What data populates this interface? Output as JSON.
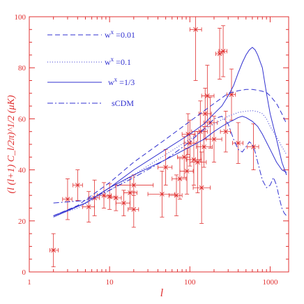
{
  "chart_data": {
    "type": "line",
    "x_scale": "log",
    "xlim": [
      1,
      1700
    ],
    "ylim": [
      0,
      100
    ],
    "xlabel": "l",
    "ylabel": "(l (l+1) C_l/2π)^1/2 (μK)",
    "x_ticks": [
      {
        "value": 1,
        "label": "1"
      },
      {
        "value": 10,
        "label": "10"
      },
      {
        "value": 100,
        "label": "100"
      },
      {
        "value": 1000,
        "label": "1000"
      }
    ],
    "y_ticks": [
      {
        "value": 0,
        "label": "0"
      },
      {
        "value": 20,
        "label": "20"
      },
      {
        "value": 40,
        "label": "40"
      },
      {
        "value": 60,
        "label": "60"
      },
      {
        "value": 80,
        "label": "80"
      },
      {
        "value": 100,
        "label": "100"
      }
    ],
    "legend_position": "top-left",
    "colors": {
      "axis": "#e03030",
      "model": "#3030d0",
      "data": "#e03030"
    },
    "series": [
      {
        "name": "w^x =0.01",
        "legend_label": "w",
        "legend_sup": "x",
        "legend_value": " =0.01",
        "style": "dashed",
        "x": [
          2,
          4,
          10,
          20,
          50,
          100,
          200,
          300,
          400,
          500,
          600,
          700,
          800,
          900,
          1000,
          1200,
          1400,
          1600
        ],
        "y": [
          22,
          26,
          35,
          43,
          52,
          59,
          66,
          70,
          71,
          71.5,
          71.5,
          71.2,
          70.8,
          70.3,
          69,
          66,
          62,
          58
        ]
      },
      {
        "name": "w^x =0.1",
        "legend_label": "w",
        "legend_sup": "x",
        "legend_value": " =0.1",
        "style": "dotted",
        "x": [
          2,
          4,
          10,
          20,
          50,
          100,
          200,
          300,
          400,
          500,
          600,
          700,
          800,
          900,
          1000,
          1200,
          1400,
          1600
        ],
        "y": [
          22,
          25,
          32,
          38,
          46,
          52,
          58,
          61,
          62.5,
          63,
          63.2,
          62.8,
          62,
          60,
          57,
          53,
          49,
          46
        ]
      },
      {
        "name": "w^x =1/3",
        "legend_label": "w",
        "legend_sup": "x",
        "legend_value": " =1/3",
        "style": "solid",
        "x": [
          2,
          5,
          10,
          20,
          50,
          100,
          150,
          200,
          250,
          300,
          350,
          400,
          450,
          500,
          550,
          600,
          650,
          700,
          800,
          900,
          1000,
          1200,
          1400,
          1600
        ],
        "y": [
          21.5,
          27,
          33,
          40,
          48,
          54,
          58,
          62,
          65,
          69,
          73,
          78,
          82,
          85,
          87,
          88,
          87,
          85,
          80,
          70,
          62,
          52,
          43,
          38
        ]
      },
      {
        "name": "sCDM",
        "legend_label": "sCDM",
        "legend_sup": "",
        "legend_value": "",
        "style": "dashdot",
        "x": [
          2,
          5,
          10,
          20,
          50,
          100,
          150,
          200,
          250,
          300,
          350,
          400,
          450,
          500,
          550,
          600,
          650,
          700,
          800,
          900,
          1000,
          1100,
          1200,
          1300,
          1400,
          1500,
          1600
        ],
        "y": [
          27,
          28,
          32,
          37,
          44,
          51,
          56,
          60,
          61,
          58,
          52,
          48,
          47,
          49,
          51,
          50,
          47,
          43,
          36,
          33,
          34,
          37,
          34,
          29,
          25,
          23,
          22
        ]
      },
      {
        "name": "",
        "style": "solid",
        "x": [
          2,
          5,
          10,
          20,
          50,
          100,
          150,
          200,
          250,
          300,
          350,
          400,
          450,
          500,
          600,
          700,
          800,
          1000,
          1200,
          1400,
          1600
        ],
        "y": [
          22,
          27,
          33,
          38,
          44,
          49,
          52,
          55,
          57,
          58.5,
          59.5,
          60.5,
          61,
          60.5,
          59,
          57,
          54,
          48,
          43,
          40,
          39
        ]
      }
    ],
    "data_points": [
      {
        "x": 2,
        "y": 8.5,
        "yerr": 6.5,
        "xlo": 1.8,
        "xhi": 2.3
      },
      {
        "x": 3,
        "y": 28.5,
        "yerr": 8,
        "xlo": 2.6,
        "xhi": 3.4
      },
      {
        "x": 4,
        "y": 34,
        "yerr": 6,
        "xlo": 3.5,
        "xhi": 4.6
      },
      {
        "x": 5.5,
        "y": 25.5,
        "yerr": 6,
        "xlo": 4.6,
        "xhi": 6.5
      },
      {
        "x": 6.5,
        "y": 29,
        "yerr": 7,
        "xlo": 5.5,
        "xhi": 7.5
      },
      {
        "x": 8.5,
        "y": 30,
        "yerr": 5,
        "xlo": 7,
        "xhi": 10.5
      },
      {
        "x": 10,
        "y": 29.5,
        "yerr": 5,
        "xlo": 8.5,
        "xhi": 12
      },
      {
        "x": 12,
        "y": 29,
        "yerr": 5,
        "xlo": 10,
        "xhi": 14
      },
      {
        "x": 15,
        "y": 27,
        "yerr": 5,
        "xlo": 12,
        "xhi": 18
      },
      {
        "x": 18,
        "y": 31,
        "yerr": 6,
        "xlo": 15,
        "xhi": 22
      },
      {
        "x": 20,
        "y": 34,
        "yerr": 4,
        "xlo": 12,
        "xhi": 35
      },
      {
        "x": 20,
        "y": 24.5,
        "yerr": 7,
        "xlo": 17,
        "xhi": 23
      },
      {
        "x": 45,
        "y": 30.5,
        "yerr": 9,
        "xlo": 30,
        "xhi": 65
      },
      {
        "x": 50,
        "y": 41,
        "yerr": 7,
        "xlo": 40,
        "xhi": 60
      },
      {
        "x": 68,
        "y": 30,
        "yerr": 8,
        "xlo": 55,
        "xhi": 80
      },
      {
        "x": 75,
        "y": 36.5,
        "yerr": 8,
        "xlo": 60,
        "xhi": 90
      },
      {
        "x": 85,
        "y": 45,
        "yerr": 8,
        "xlo": 70,
        "xhi": 100
      },
      {
        "x": 92,
        "y": 39.5,
        "yerr": 9,
        "xlo": 75,
        "xhi": 110
      },
      {
        "x": 95,
        "y": 54,
        "yerr": 8,
        "xlo": 80,
        "xhi": 115
      },
      {
        "x": 100,
        "y": 50.5,
        "yerr": 9,
        "xlo": 85,
        "xhi": 120
      },
      {
        "x": 112,
        "y": 44,
        "yerr": 10,
        "xlo": 90,
        "xhi": 140
      },
      {
        "x": 118,
        "y": 95,
        "yerr": 20,
        "xlo": 100,
        "xhi": 140
      },
      {
        "x": 125,
        "y": 43,
        "yerr": 12,
        "xlo": 100,
        "xhi": 160
      },
      {
        "x": 135,
        "y": 55,
        "yerr": 12,
        "xlo": 105,
        "xhi": 165
      },
      {
        "x": 140,
        "y": 33,
        "yerr": 14,
        "xlo": 110,
        "xhi": 180
      },
      {
        "x": 150,
        "y": 49,
        "yerr": 8,
        "xlo": 120,
        "xhi": 190
      },
      {
        "x": 155,
        "y": 62,
        "yerr": 10,
        "xlo": 130,
        "xhi": 185
      },
      {
        "x": 165,
        "y": 69,
        "yerr": 12,
        "xlo": 140,
        "xhi": 200
      },
      {
        "x": 180,
        "y": 58.5,
        "yerr": 10,
        "xlo": 150,
        "xhi": 220
      },
      {
        "x": 200,
        "y": 52,
        "yerr": 9,
        "xlo": 160,
        "xhi": 250
      },
      {
        "x": 235,
        "y": 85.5,
        "yerr": 10,
        "xlo": 210,
        "xhi": 260
      },
      {
        "x": 260,
        "y": 86.5,
        "yerr": 10,
        "xlo": 230,
        "xhi": 290
      },
      {
        "x": 280,
        "y": 55,
        "yerr": 8,
        "xlo": 240,
        "xhi": 320
      },
      {
        "x": 330,
        "y": 69.5,
        "yerr": 10,
        "xlo": 290,
        "xhi": 370
      },
      {
        "x": 400,
        "y": 50.5,
        "yerr": 8,
        "xlo": 340,
        "xhi": 460
      },
      {
        "x": 620,
        "y": 49,
        "yerr": 9,
        "xlo": 520,
        "xhi": 720
      }
    ]
  }
}
